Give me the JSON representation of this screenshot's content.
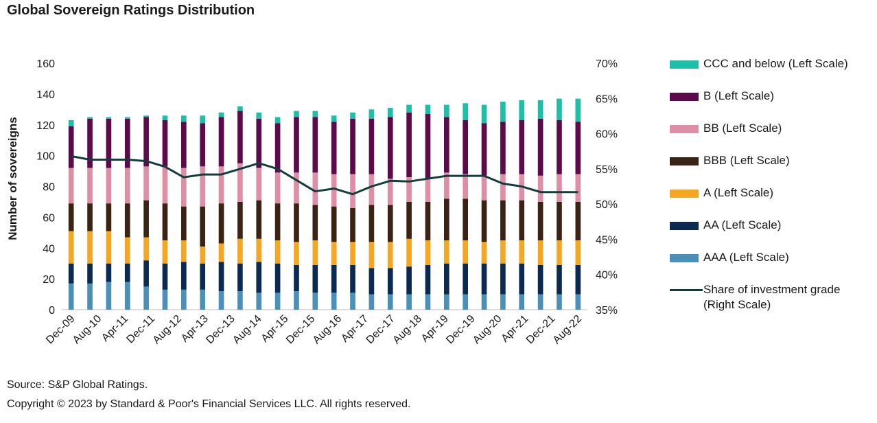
{
  "title": "Global Sovereign Ratings Distribution",
  "source": "Source: S&P Global Ratings.",
  "copyright": "Copyright © 2023 by Standard & Poor's Financial Services LLC. All rights reserved.",
  "chart_data": {
    "type": "bar",
    "stacked": true,
    "ylabel": "Number of sovereigns",
    "ylim": [
      0,
      160
    ],
    "yticks": [
      0,
      20,
      40,
      60,
      80,
      100,
      120,
      140,
      160
    ],
    "y2lim": [
      35,
      70
    ],
    "y2ticks": [
      "35%",
      "40%",
      "45%",
      "50%",
      "55%",
      "60%",
      "65%",
      "70%"
    ],
    "x_tick_labels": [
      "Dec-09",
      "Aug-10",
      "Apr-11",
      "Dec-11",
      "Aug-12",
      "Apr-13",
      "Dec-13",
      "Aug-14",
      "Apr-15",
      "Dec-15",
      "Aug-16",
      "Apr-17",
      "Dec-17",
      "Aug-18",
      "Apr-19",
      "Dec-19",
      "Aug-20",
      "Apr-21",
      "Dec-21",
      "Aug-22"
    ],
    "bar_count": 28,
    "grid": false,
    "legend_position": "right",
    "series": [
      {
        "name": "AAA (Left Scale)",
        "color": "#4a90b8",
        "axis": "left",
        "values": [
          17,
          17,
          18,
          18,
          15,
          13,
          13,
          13,
          12,
          12,
          11,
          11,
          12,
          11,
          11,
          11,
          10,
          10,
          10,
          10,
          10,
          10,
          10,
          10,
          10,
          10,
          10,
          10
        ]
      },
      {
        "name": "AA (Left Scale)",
        "color": "#0b2a52",
        "axis": "left",
        "values": [
          13,
          13,
          12,
          12,
          17,
          17,
          18,
          17,
          19,
          18,
          20,
          19,
          17,
          18,
          18,
          18,
          17,
          17,
          18,
          19,
          20,
          20,
          20,
          20,
          20,
          19,
          19,
          19
        ]
      },
      {
        "name": "A (Left Scale)",
        "color": "#f5a623",
        "axis": "left",
        "values": [
          21,
          21,
          21,
          17,
          15,
          15,
          14,
          11,
          12,
          16,
          15,
          15,
          15,
          16,
          15,
          15,
          17,
          17,
          18,
          16,
          15,
          15,
          14,
          15,
          15,
          16,
          16,
          16
        ]
      },
      {
        "name": "BBB (Left Scale)",
        "color": "#3b2314",
        "axis": "left",
        "values": [
          18,
          18,
          18,
          22,
          24,
          24,
          22,
          26,
          26,
          24,
          25,
          24,
          25,
          23,
          23,
          22,
          24,
          24,
          24,
          25,
          27,
          27,
          27,
          26,
          26,
          25,
          25,
          25
        ]
      },
      {
        "name": "BB (Left Scale)",
        "color": "#de8fa6",
        "axis": "left",
        "values": [
          23,
          23,
          23,
          23,
          22,
          24,
          25,
          26,
          24,
          25,
          21,
          20,
          20,
          21,
          21,
          22,
          20,
          17,
          16,
          15,
          17,
          16,
          16,
          17,
          17,
          17,
          18,
          18
        ]
      },
      {
        "name": "B (Left Scale)",
        "color": "#5d0a4c",
        "axis": "left",
        "values": [
          27,
          32,
          32,
          32,
          32,
          30,
          30,
          28,
          32,
          34,
          32,
          32,
          36,
          36,
          34,
          36,
          36,
          40,
          42,
          42,
          36,
          35,
          34,
          34,
          35,
          37,
          35,
          34
        ]
      },
      {
        "name": "CCC and below (Left Scale)",
        "color": "#1dbfa6",
        "axis": "left",
        "values": [
          4,
          1,
          1,
          1,
          1,
          3,
          4,
          5,
          3,
          3,
          4,
          4,
          4,
          4,
          4,
          4,
          6,
          6,
          5,
          6,
          8,
          11,
          12,
          13,
          13,
          12,
          14,
          15
        ]
      },
      {
        "name": "Share of investment grade\n(Right Scale)",
        "color": "#133d3d",
        "axis": "right",
        "type": "line",
        "values": [
          56.8,
          56.3,
          56.3,
          56.3,
          56.1,
          55.3,
          53.8,
          54.2,
          54.2,
          55.0,
          55.8,
          55.0,
          53.4,
          51.8,
          52.2,
          51.4,
          52.5,
          53.3,
          53.2,
          53.6,
          54.0,
          54.0,
          54.0,
          52.9,
          52.5,
          51.7,
          51.7,
          51.7
        ]
      }
    ]
  }
}
